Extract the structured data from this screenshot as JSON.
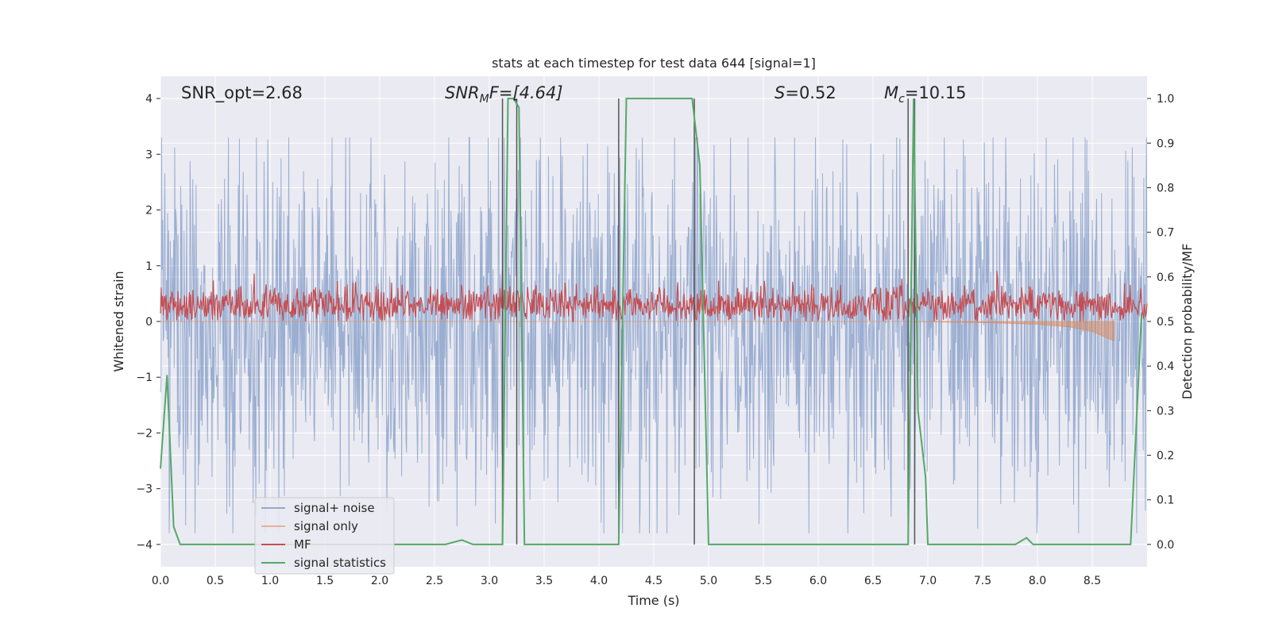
{
  "chart_data": {
    "type": "line",
    "title": "stats at each timestep for test data 644 [signal=1]",
    "xlabel": "Time (s)",
    "ylabel_left": "Whitened strain",
    "ylabel_right": "Detection probability/MF",
    "xlim": [
      0.0,
      9.0
    ],
    "ylim_left": [
      -4.4,
      4.4
    ],
    "ylim_right": [
      -0.05,
      1.05
    ],
    "x_ticks": [
      "0.0",
      "0.5",
      "1.0",
      "1.5",
      "2.0",
      "2.5",
      "3.0",
      "3.5",
      "4.0",
      "4.5",
      "5.0",
      "5.5",
      "6.0",
      "6.5",
      "7.0",
      "7.5",
      "8.0",
      "8.5"
    ],
    "x_tick_values": [
      0.0,
      0.5,
      1.0,
      1.5,
      2.0,
      2.5,
      3.0,
      3.5,
      4.0,
      4.5,
      5.0,
      5.5,
      6.0,
      6.5,
      7.0,
      7.5,
      8.0,
      8.5
    ],
    "y_ticks_left": [
      "4",
      "3",
      "2",
      "1",
      "0",
      "−1",
      "−2",
      "−3",
      "−4"
    ],
    "y_tick_values_left": [
      4,
      3,
      2,
      1,
      0,
      -1,
      -2,
      -3,
      -4
    ],
    "y_ticks_right": [
      "1.0",
      "0.9",
      "0.8",
      "0.7",
      "0.6",
      "0.5",
      "0.4",
      "0.3",
      "0.2",
      "0.1",
      "0.0"
    ],
    "y_tick_values_right": [
      1.0,
      0.9,
      0.8,
      0.7,
      0.6,
      0.5,
      0.4,
      0.3,
      0.2,
      0.1,
      0.0
    ],
    "grid": true,
    "legend_position": "lower-left",
    "annotations": {
      "snr_opt": "SNR_opt=2.68",
      "snr_mf_sym": "SNR",
      "snr_mf_sub": "M",
      "snr_mf_rest": "F=[4.64]",
      "s_sym": "S",
      "s_rest": "=0.52",
      "mc_sym": "M",
      "mc_sub": "c",
      "mc_rest": "=10.15"
    },
    "series": [
      {
        "name": "signal+ noise",
        "color": "#4c72b0",
        "axis": "left",
        "envelope_amplitude": 2.2,
        "peak_max": 3.3,
        "trough_min": -3.8
      },
      {
        "name": "signal only",
        "color": "#dd8452",
        "axis": "left",
        "x": [
          0.0,
          6.8,
          7.5,
          8.0,
          8.3,
          8.5,
          8.7
        ],
        "y": [
          0.0,
          0.0,
          -0.02,
          -0.05,
          -0.1,
          -0.18,
          -0.35
        ]
      },
      {
        "name": "MF",
        "color": "#c44e52",
        "axis": "left",
        "baseline": 0.3,
        "peak_max": 1.0
      },
      {
        "name": "signal statistics",
        "color": "#55a868",
        "axis": "right",
        "x": [
          0.0,
          0.06,
          0.12,
          0.18,
          1.8,
          2.6,
          2.75,
          2.85,
          3.12,
          3.17,
          3.22,
          3.27,
          3.32,
          4.18,
          4.25,
          4.85,
          4.92,
          5.0,
          6.25,
          6.82,
          6.87,
          6.91,
          6.98,
          7.0,
          7.8,
          7.9,
          7.96,
          8.85,
          8.95
        ],
        "y": [
          0.17,
          0.38,
          0.04,
          0.0,
          0.0,
          0.0,
          0.01,
          0.0,
          0.0,
          1.0,
          1.0,
          0.98,
          0.0,
          0.0,
          1.0,
          1.0,
          0.85,
          0.0,
          0.0,
          0.0,
          1.0,
          0.3,
          0.15,
          0.0,
          0.0,
          0.015,
          0.0,
          0.0,
          0.52
        ]
      }
    ],
    "vertical_markers": [
      {
        "x": 3.12,
        "ymin": -4.0,
        "ymax": 4.0
      },
      {
        "x": 3.25,
        "ymin": -4.0,
        "ymax": 4.0
      },
      {
        "x": 4.18,
        "ymin": -4.0,
        "ymax": 4.0
      },
      {
        "x": 4.87,
        "ymin": -4.0,
        "ymax": 4.0
      },
      {
        "x": 6.82,
        "ymin": -4.0,
        "ymax": 4.0
      },
      {
        "x": 6.88,
        "ymin": -4.0,
        "ymax": 4.0
      }
    ]
  }
}
